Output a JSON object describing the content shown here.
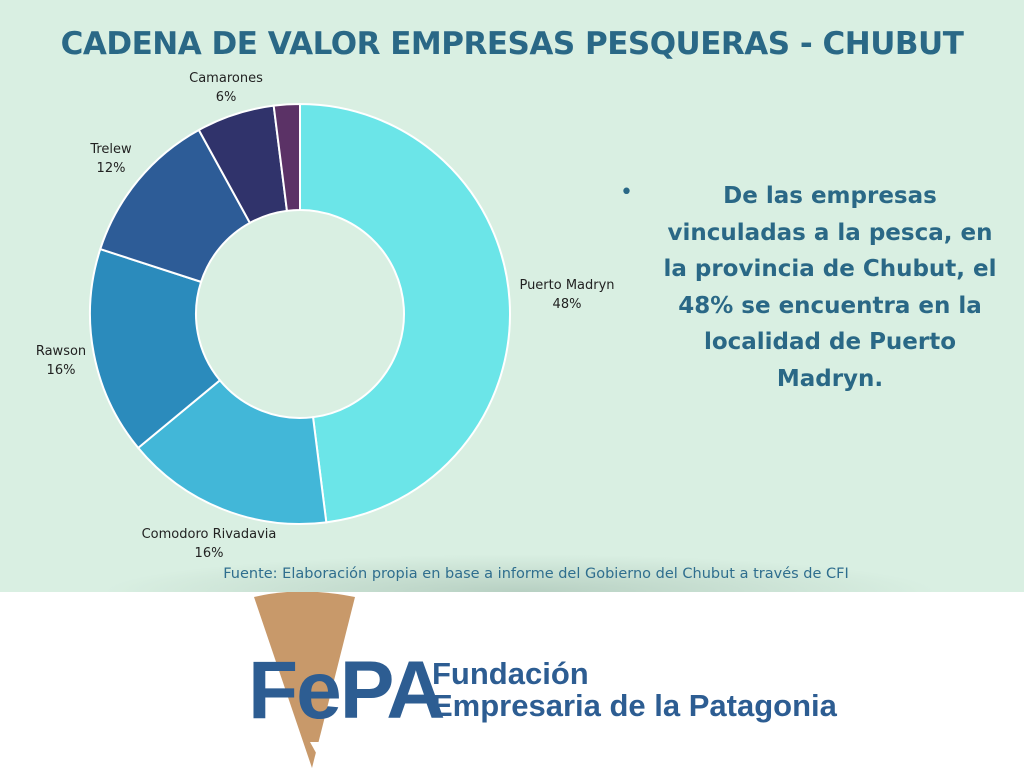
{
  "slide": {
    "title": "CADENA DE VALOR EMPRESAS PESQUERAS - CHUBUT",
    "bullet_symbol": "•",
    "bullet_text": "De las empresas vinculadas a la pesca, en la provincia de Chubut, el 48% se encuentra en la localidad de Puerto Madryn.",
    "source": "Fuente: Elaboración propia en base a informe del Gobierno del Chubut a través de CFI"
  },
  "chart_data": {
    "type": "pie",
    "variant": "donut",
    "categories": [
      "Puerto Madryn",
      "Comodoro Rivadavia",
      "Rawson",
      "Trelew",
      "Camarones",
      ""
    ],
    "values": [
      48,
      16,
      16,
      12,
      6,
      2
    ],
    "labels": [
      "48%",
      "16%",
      "16%",
      "12%",
      "6%",
      ""
    ],
    "colors": [
      "#6be5e8",
      "#42b7d8",
      "#2b8bbc",
      "#2d5c97",
      "#30336b",
      "#5b3266"
    ],
    "start": "top",
    "direction": "clockwise"
  },
  "logo": {
    "letters": "FePA",
    "org_line1": "Fundación",
    "org_line2": "Empresaria de la Patagonia",
    "accent_color": "#c8996a",
    "text_color": "#2d5d92"
  }
}
